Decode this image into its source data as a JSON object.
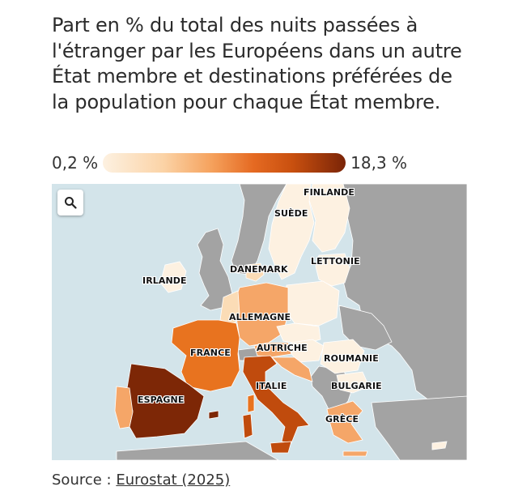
{
  "title": "Part en % du total des nuits passées à l'étranger par les Européens dans un autre État membre et destinations préférées de la population pour chaque État membre.",
  "legend": {
    "min": "0,2 %",
    "max": "18,3 %"
  },
  "map": {
    "labels": {
      "finlande": "FINLANDE",
      "suede": "SUÈDE",
      "danemark": "DANEMARK",
      "lettonie": "LETTONIE",
      "irlande": "IRLANDE",
      "allemagne": "ALLEMAGNE",
      "france": "FRANCE",
      "autriche": "AUTRICHE",
      "roumanie": "ROUMANIE",
      "italie": "ITALIE",
      "bulgarie": "BULGARIE",
      "espagne": "ESPAGNE",
      "grece": "GRÈCE"
    },
    "colors": {
      "sea": "#d3e4ea",
      "non_eu": "#a0a0a0",
      "lightest": "#fdf1e1",
      "light": "#fbdcb6",
      "medium": "#f5a668",
      "orange": "#e8731f",
      "dark_orange": "#c04b0d",
      "darkest": "#7d2706"
    },
    "zoom_icon": "search-icon"
  },
  "source": {
    "prefix": "Source : ",
    "link": "Eurostat (2025)"
  }
}
